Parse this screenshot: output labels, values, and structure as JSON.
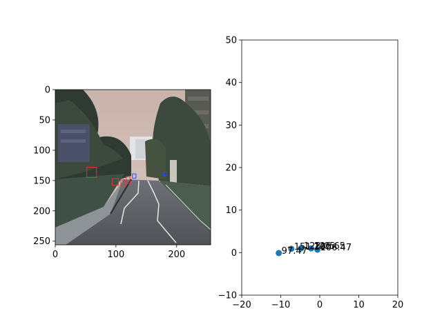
{
  "colors": {
    "point": "#1f77b4",
    "box_red": "#e8312e",
    "box_blue": "#2f46ff"
  },
  "chart_data": [
    {
      "type": "image",
      "xlim": [
        0,
        256
      ],
      "ylim": [
        256,
        0
      ],
      "xticks": [
        0,
        100,
        200
      ],
      "yticks": [
        0,
        50,
        100,
        150,
        200,
        250
      ],
      "image_desc": "dashcam view of a road with trees, a building on the right, and marked lane lines",
      "detections": [
        {
          "color": "red",
          "x": [
            52,
            68
          ],
          "y": [
            128,
            145
          ]
        },
        {
          "color": "red",
          "x": [
            94,
            104
          ],
          "y": [
            147,
            158
          ]
        },
        {
          "color": "red",
          "x": [
            108,
            114
          ],
          "y": [
            149,
            158
          ]
        },
        {
          "color": "red",
          "x": [
            117,
            123
          ],
          "y": [
            143,
            155
          ]
        },
        {
          "color": "blue",
          "x": [
            127,
            133
          ],
          "y": [
            139,
            146
          ]
        },
        {
          "color": "blue",
          "x": [
            178,
            184
          ],
          "y": [
            136,
            142
          ]
        }
      ]
    },
    {
      "type": "scatter",
      "xlim": [
        -20,
        20
      ],
      "ylim": [
        -10,
        50
      ],
      "xticks": [
        -20,
        -10,
        0,
        10,
        20
      ],
      "yticks": [
        -10,
        0,
        10,
        20,
        30,
        40,
        50
      ],
      "points": [
        {
          "x": -10.5,
          "y": -0.1,
          "label": "97.47"
        },
        {
          "x": -7.3,
          "y": 0.9,
          "label": "151.26"
        },
        {
          "x": -4.8,
          "y": 1.0,
          "label": "128.05"
        },
        {
          "x": -2.2,
          "y": 1.0,
          "label": "126.65"
        },
        {
          "x": -0.6,
          "y": 0.7,
          "label": "106.47"
        }
      ]
    }
  ]
}
